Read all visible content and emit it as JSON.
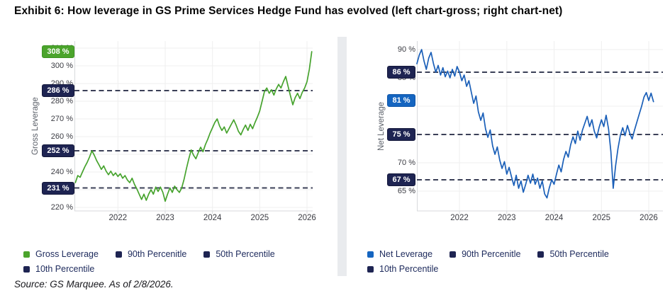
{
  "title": "Exhibit 6: How leverage in GS Prime Services Hedge Fund has evolved (left chart-gross; right chart-net)",
  "source": "Source: GS Marquee. As of 2/8/2026.",
  "colors": {
    "gross_line": "#46a32d",
    "gross_badge": "#4ba42c",
    "net_line": "#1a5fb8",
    "net_badge": "#1565c0",
    "percentile_badge": "#1e2452",
    "dashed_line": "#3b4057",
    "legend_text": "#1d2a5c",
    "divider": "#e9ebee"
  },
  "chart_data": [
    {
      "type": "line",
      "ylabel": "Gross Leverage",
      "tick_suffix": " %",
      "xlim": [
        2021.08,
        2026.12
      ],
      "ylim": [
        218,
        314
      ],
      "x_ticks": [
        2022,
        2023,
        2024,
        2025,
        2026
      ],
      "y_grid": [
        220,
        230,
        240,
        250,
        260,
        270,
        280,
        290,
        300,
        310
      ],
      "y_ticks": [
        220,
        240,
        260,
        270,
        280,
        290,
        300,
        310
      ],
      "percentile_lines": [
        {
          "name": "gross-90th-percentile-line",
          "value": 286
        },
        {
          "name": "gross-50th-percentile-line",
          "value": 252
        },
        {
          "name": "gross-10th-percentile-line",
          "value": 231
        }
      ],
      "badges": [
        {
          "name": "gross-current-value-badge",
          "label": "308 %",
          "value": 308,
          "color": "#4ba42c",
          "border": "#3d9422"
        },
        {
          "name": "gross-90th-percentile-badge",
          "label": "286 %",
          "value": 286,
          "color": "#1e2452",
          "border": "#14183b"
        },
        {
          "name": "gross-50th-percentile-badge",
          "label": "252 %",
          "value": 252,
          "color": "#1e2452",
          "border": "#14183b"
        },
        {
          "name": "gross-10th-percentile-badge",
          "label": "231 %",
          "value": 231,
          "color": "#1e2452",
          "border": "#14183b"
        }
      ],
      "series": {
        "name": "Gross Leverage",
        "slug": "gross-leverage-series",
        "color": "#46a32d",
        "x0": 2021.1,
        "dx": 0.05,
        "values": [
          234,
          238,
          237,
          240,
          243,
          245.5,
          248.5,
          252,
          249.5,
          246.5,
          244,
          241.5,
          243.5,
          240.5,
          238.5,
          240.5,
          238,
          239.5,
          237.5,
          239,
          236.5,
          238,
          235.5,
          234,
          236.5,
          233,
          230.5,
          227.5,
          224.5,
          227.5,
          224,
          227.5,
          230,
          227.5,
          231.5,
          229,
          231.5,
          228.5,
          223.5,
          227.5,
          231,
          228.5,
          232,
          230,
          228.5,
          231,
          236,
          242,
          247.5,
          252.5,
          249.5,
          247.5,
          251,
          254,
          251.5,
          255.5,
          258.5,
          262,
          265,
          268,
          270,
          266,
          263.5,
          265.5,
          262,
          264.5,
          267,
          269.5,
          266.5,
          263,
          261,
          264,
          266.5,
          263.5,
          267,
          264.5,
          268,
          271,
          274.5,
          280,
          285.5,
          287.5,
          284.5,
          286.5,
          283.5,
          287,
          289.5,
          287.5,
          291,
          294,
          288.5,
          283,
          278,
          282,
          284.5,
          281.5,
          285,
          287.5,
          291,
          298,
          308
        ]
      },
      "legend": [
        {
          "label": "Gross Leverage",
          "color": "#4ba42c"
        },
        {
          "label": "90th Percenitle",
          "color": "#1e2452"
        },
        {
          "label": "50th Percentile",
          "color": "#1e2452"
        },
        {
          "label": "10th Percentile",
          "color": "#1e2452"
        }
      ]
    },
    {
      "type": "line",
      "ylabel": "Net Leverage",
      "tick_suffix": " %",
      "xlim": [
        2021.1,
        2026.3
      ],
      "ylim": [
        61.5,
        91.5
      ],
      "x_ticks": [
        2022,
        2023,
        2024,
        2025,
        2026
      ],
      "y_grid": [
        65,
        70,
        75,
        80,
        85,
        90
      ],
      "y_ticks": [
        65,
        70,
        85,
        90
      ],
      "percentile_lines": [
        {
          "name": "net-90th-percentile-line",
          "value": 86
        },
        {
          "name": "net-50th-percentile-line",
          "value": 75
        },
        {
          "name": "net-10th-percentile-line",
          "value": 67
        }
      ],
      "badges": [
        {
          "name": "net-90th-percentile-badge",
          "label": "86 %",
          "value": 86,
          "color": "#1e2452",
          "border": "#14183b"
        },
        {
          "name": "net-current-value-badge",
          "label": "81 %",
          "value": 81,
          "color": "#1565c0",
          "border": "#0f55a8"
        },
        {
          "name": "net-50th-percentile-badge",
          "label": "75 %",
          "value": 75,
          "color": "#1e2452",
          "border": "#14183b"
        },
        {
          "name": "net-10th-percentile-badge",
          "label": "67 %",
          "value": 67,
          "color": "#1e2452",
          "border": "#14183b"
        }
      ],
      "series": {
        "name": "Net Leverage",
        "slug": "net-leverage-series",
        "color": "#1a5fb8",
        "x0": 2021.1,
        "dx": 0.05,
        "values": [
          87.5,
          89,
          90,
          88,
          86.5,
          88.5,
          89.5,
          87.5,
          86,
          87.2,
          85.5,
          86.8,
          85.2,
          86.2,
          85,
          86.5,
          85.3,
          87,
          86,
          84.5,
          85.5,
          83.5,
          84.5,
          82.5,
          80.5,
          81.8,
          79,
          77.5,
          78.8,
          76,
          74.5,
          75.8,
          73,
          71.5,
          72.8,
          70.5,
          69,
          70.2,
          68,
          69.2,
          67.5,
          66,
          67.8,
          65.5,
          66.8,
          64.8,
          66.2,
          67.8,
          66.4,
          68,
          66.2,
          67.3,
          65.5,
          66.8,
          64.5,
          63.8,
          65.6,
          67,
          66.2,
          68,
          69.6,
          68.4,
          70.6,
          72,
          71,
          73.2,
          74.6,
          73.4,
          75.6,
          74,
          75.8,
          77,
          78.2,
          76.4,
          77.6,
          75.6,
          74.4,
          76.2,
          77.6,
          76.4,
          78.4,
          76,
          72,
          65.5,
          69.5,
          72.5,
          74.8,
          76.2,
          74.8,
          76.6,
          75.2,
          74.2,
          75.8,
          77.2,
          78.6,
          80,
          81.6,
          82.4,
          81,
          82.3,
          80.8
        ]
      },
      "legend": [
        {
          "label": "Net Leverage",
          "color": "#1565c0"
        },
        {
          "label": "90th Percenitle",
          "color": "#1e2452"
        },
        {
          "label": "50th Percentile",
          "color": "#1e2452"
        },
        {
          "label": "10th Percentile",
          "color": "#1e2452"
        }
      ]
    }
  ]
}
